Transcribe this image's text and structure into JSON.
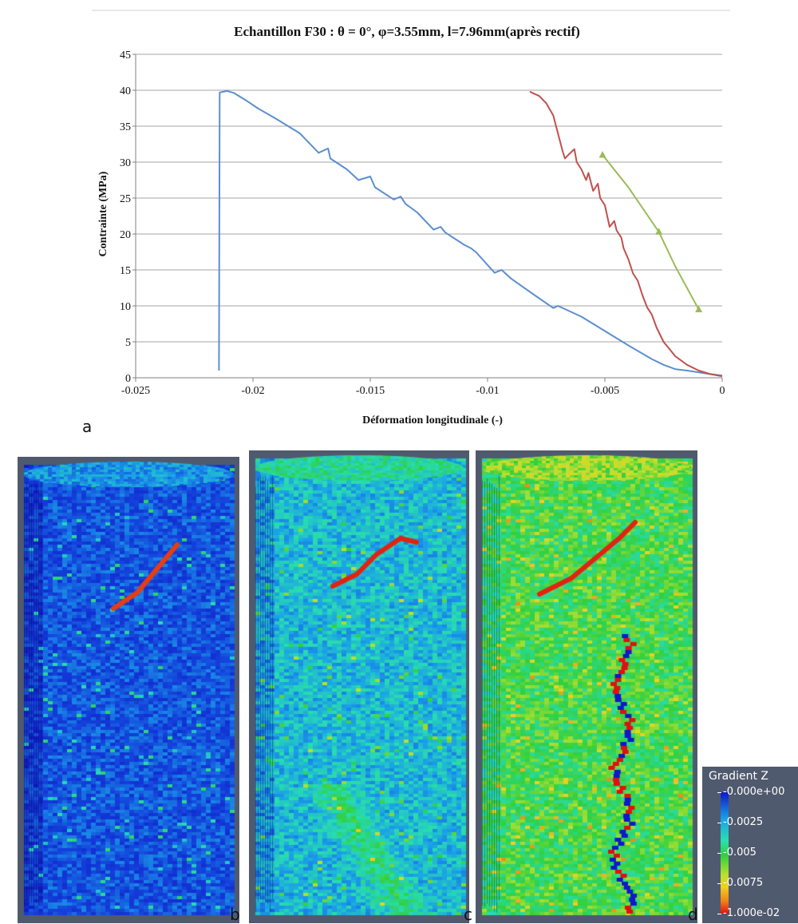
{
  "chart_data": {
    "type": "line",
    "title": "Echantillon F30 : θ = 0°, φ=3.55mm, l=7.96mm(après rectif)",
    "xlabel": "Déformation longitudinale (-)",
    "ylabel": "Contrainte (MPa)",
    "xlim": [
      -0.025,
      0
    ],
    "ylim": [
      0,
      45
    ],
    "x_ticks": [
      "-0.025",
      "-0.02",
      "-0.015",
      "-0.01",
      "-0.005",
      "0"
    ],
    "y_ticks": [
      "0",
      "5",
      "10",
      "15",
      "20",
      "25",
      "30",
      "35",
      "40",
      "45"
    ],
    "grid": "horizontal",
    "series": [
      {
        "color": "#5b8fd0",
        "marker": "none",
        "x": [
          0,
          -0.0007,
          -0.0015,
          -0.002,
          -0.0025,
          -0.003,
          -0.004,
          -0.005,
          -0.006,
          -0.007,
          -0.0072,
          -0.008,
          -0.009,
          -0.0094,
          -0.0097,
          -0.0105,
          -0.0107,
          -0.011,
          -0.0118,
          -0.012,
          -0.0123,
          -0.013,
          -0.0135,
          -0.0137,
          -0.014,
          -0.0148,
          -0.015,
          -0.0155,
          -0.016,
          -0.0167,
          -0.0168,
          -0.0172,
          -0.018,
          -0.019,
          -0.0198,
          -0.0203,
          -0.0208,
          -0.0211,
          -0.0214,
          -0.02142,
          -0.02145
        ],
        "y": [
          0.3,
          0.6,
          1.0,
          1.2,
          1.8,
          2.6,
          4.5,
          6.5,
          8.5,
          10.0,
          9.7,
          11.5,
          13.8,
          15.0,
          14.6,
          17.5,
          18.0,
          18.5,
          20.2,
          21.0,
          20.6,
          23.0,
          24.2,
          25.2,
          24.8,
          26.5,
          28.0,
          27.5,
          29.0,
          30.5,
          31.9,
          31.3,
          34.0,
          36.0,
          37.5,
          38.6,
          39.6,
          39.9,
          39.7,
          39.7,
          1.0
        ]
      },
      {
        "color": "#c0504d",
        "marker": "none",
        "x": [
          0,
          -0.0005,
          -0.001,
          -0.0015,
          -0.002,
          -0.0025,
          -0.0028,
          -0.003,
          -0.0032,
          -0.0034,
          -0.0036,
          -0.0038,
          -0.004,
          -0.0042,
          -0.0043,
          -0.0045,
          -0.0046,
          -0.0048,
          -0.005,
          -0.0052,
          -0.0053,
          -0.0055,
          -0.0057,
          -0.0058,
          -0.006,
          -0.0062,
          -0.0063,
          -0.0065,
          -0.0067,
          -0.0068,
          -0.007,
          -0.0072,
          -0.0075,
          -0.0078,
          -0.0082
        ],
        "y": [
          0.2,
          0.5,
          1.0,
          1.8,
          3.0,
          5.0,
          7.0,
          8.8,
          9.8,
          11.5,
          13.5,
          14.5,
          16.5,
          18.0,
          19.5,
          20.5,
          21.8,
          21.0,
          24.0,
          25.0,
          27.0,
          26.0,
          28.5,
          27.5,
          29.0,
          30.0,
          31.8,
          31.2,
          30.5,
          31.5,
          34.0,
          36.5,
          38.2,
          39.2,
          39.8
        ]
      },
      {
        "color": "#9bbb59",
        "marker": "triangle",
        "x": [
          -0.001,
          -0.002,
          -0.0027,
          -0.004,
          -0.0051
        ],
        "y": [
          9.5,
          15.5,
          20.3,
          26.5,
          31.0
        ],
        "marker_points": [
          [
            -0.001,
            9.5
          ],
          [
            -0.0027,
            20.3
          ],
          [
            -0.0051,
            31.0
          ]
        ]
      }
    ]
  },
  "panels": {
    "a": "a",
    "b": "b",
    "c": "c",
    "d": "d"
  },
  "colorbar": {
    "title": "Gradient Z",
    "ticks": [
      "-0.000e+00",
      "-0.0025",
      "-0.005",
      "-0.0075",
      "-1.000e-02"
    ]
  }
}
